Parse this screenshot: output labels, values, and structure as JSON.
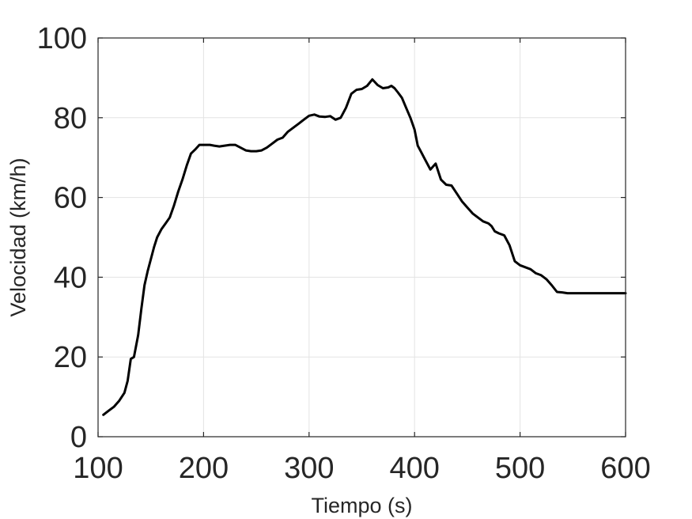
{
  "chart_data": {
    "type": "line",
    "title": "",
    "xlabel": "Tiempo (s)",
    "ylabel": "Velocidad (km/h)",
    "xlim": [
      100,
      600
    ],
    "ylim": [
      0,
      100
    ],
    "xticks": [
      100,
      200,
      300,
      400,
      500,
      600
    ],
    "yticks": [
      0,
      20,
      40,
      60,
      80,
      100
    ],
    "grid": true,
    "line_color": "#000000",
    "series": [
      {
        "x": [
          105,
          110,
          115,
          120,
          125,
          128,
          131,
          134,
          138,
          141,
          144,
          147,
          150,
          153,
          156,
          160,
          164,
          168,
          172,
          176,
          180,
          184,
          188,
          192,
          196,
          200,
          203,
          206,
          210,
          215,
          220,
          225,
          230,
          235,
          240,
          245,
          250,
          255,
          260,
          265,
          270,
          275,
          280,
          285,
          290,
          295,
          300,
          305,
          310,
          315,
          320,
          325,
          330,
          335,
          340,
          345,
          350,
          355,
          360,
          365,
          370,
          375,
          378,
          381,
          384,
          388,
          392,
          396,
          400,
          403,
          406,
          410,
          415,
          420,
          425,
          430,
          435,
          440,
          445,
          450,
          455,
          460,
          465,
          470,
          473,
          476,
          480,
          485,
          490,
          495,
          500,
          505,
          510,
          515,
          520,
          525,
          530,
          535,
          540,
          545,
          550,
          555,
          560,
          565,
          570,
          575,
          580,
          585,
          590,
          595,
          600
        ],
        "y": [
          5.5,
          6.5,
          7.5,
          9.0,
          11.0,
          14.0,
          19.5,
          20.0,
          25.5,
          32.0,
          38.0,
          41.5,
          44.5,
          47.5,
          50.0,
          52.0,
          53.5,
          55.0,
          58.0,
          61.5,
          64.5,
          68.0,
          71.0,
          72.0,
          73.2,
          73.2,
          73.2,
          73.2,
          73.0,
          72.8,
          73.0,
          73.2,
          73.2,
          72.5,
          71.8,
          71.6,
          71.6,
          71.8,
          72.5,
          73.5,
          74.5,
          75.0,
          76.5,
          77.5,
          78.5,
          79.5,
          80.5,
          80.8,
          80.3,
          80.2,
          80.4,
          79.5,
          80.0,
          82.5,
          86.0,
          87.0,
          87.2,
          88.0,
          89.6,
          88.2,
          87.4,
          87.6,
          88.0,
          87.4,
          86.4,
          85.0,
          82.5,
          80.0,
          77.0,
          73.0,
          71.5,
          69.5,
          67.0,
          68.5,
          64.5,
          63.2,
          63.0,
          61.0,
          59.0,
          57.5,
          56.0,
          55.0,
          54.0,
          53.5,
          52.8,
          51.5,
          51.0,
          50.5,
          48.0,
          44.0,
          43.0,
          42.5,
          42.0,
          41.0,
          40.5,
          39.5,
          38.0,
          36.3,
          36.2,
          36.0,
          36.0,
          36.0,
          36.0,
          36.0,
          36.0,
          36.0,
          36.0,
          36.0,
          36.0,
          36.0,
          36.0
        ]
      }
    ]
  }
}
